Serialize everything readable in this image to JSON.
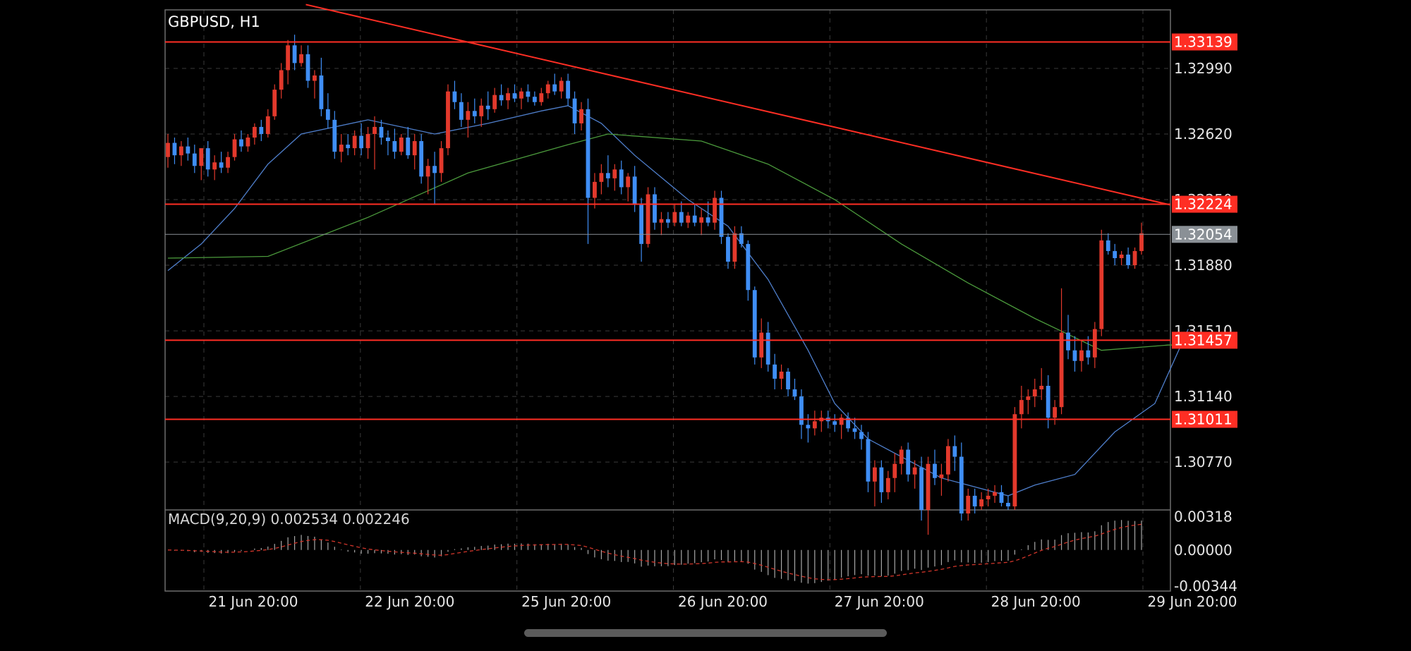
{
  "chart_data": {
    "type": "candlestick",
    "symbol_label": "GBPUSD, H1",
    "y_ticks": [
      "1.32990",
      "1.32620",
      "1.32250",
      "1.31880",
      "1.31510",
      "1.31140",
      "1.30770"
    ],
    "ylim": [
      1.305,
      1.3332
    ],
    "x_ticks": [
      "21 Jun 20:00",
      "22 Jun 20:00",
      "25 Jun 20:00",
      "26 Jun 20:00",
      "27 Jun 20:00",
      "28 Jun 20:00",
      "29 Jun 20:00"
    ],
    "grid": true,
    "horizontal_lines": [
      {
        "label": "1.33139",
        "value": 1.33139,
        "color": "#ff2e24"
      },
      {
        "label": "1.32224",
        "value": 1.32224,
        "color": "#ff2e24"
      },
      {
        "label": "1.32054",
        "value": 1.32054,
        "color": "#8a9096"
      },
      {
        "label": "1.31457",
        "value": 1.31457,
        "color": "#ff2e24"
      },
      {
        "label": "1.31011",
        "value": 1.31011,
        "color": "#ff2e24"
      }
    ],
    "trendline": {
      "from": [
        0.14,
        1.3335
      ],
      "to": [
        1.0,
        1.3222
      ],
      "color": "#ff2e24"
    },
    "candles": [
      [
        1.3249,
        1.3262,
        1.3243,
        1.3257
      ],
      [
        1.3257,
        1.326,
        1.3245,
        1.325
      ],
      [
        1.325,
        1.3258,
        1.3244,
        1.3255
      ],
      [
        1.3255,
        1.326,
        1.3247,
        1.3251
      ],
      [
        1.3251,
        1.3256,
        1.324,
        1.3244
      ],
      [
        1.3244,
        1.3252,
        1.3236,
        1.3254
      ],
      [
        1.3254,
        1.3258,
        1.3238,
        1.3242
      ],
      [
        1.3242,
        1.325,
        1.3236,
        1.3246
      ],
      [
        1.3246,
        1.3252,
        1.324,
        1.3243
      ],
      [
        1.3243,
        1.3252,
        1.324,
        1.3249
      ],
      [
        1.3249,
        1.3262,
        1.3247,
        1.3259
      ],
      [
        1.3259,
        1.3264,
        1.3252,
        1.3255
      ],
      [
        1.3255,
        1.3262,
        1.3252,
        1.326
      ],
      [
        1.326,
        1.3268,
        1.3256,
        1.3266
      ],
      [
        1.3266,
        1.327,
        1.3258,
        1.3262
      ],
      [
        1.3262,
        1.3276,
        1.326,
        1.3272
      ],
      [
        1.3272,
        1.329,
        1.327,
        1.3287
      ],
      [
        1.3287,
        1.3302,
        1.3282,
        1.3298
      ],
      [
        1.3298,
        1.3315,
        1.329,
        1.3312
      ],
      [
        1.3312,
        1.3318,
        1.3298,
        1.3302
      ],
      [
        1.3302,
        1.3312,
        1.33,
        1.3307
      ],
      [
        1.3307,
        1.3312,
        1.3288,
        1.3292
      ],
      [
        1.3292,
        1.3298,
        1.3282,
        1.3295
      ],
      [
        1.3295,
        1.3305,
        1.3272,
        1.3276
      ],
      [
        1.3276,
        1.3285,
        1.3265,
        1.327
      ],
      [
        1.327,
        1.3275,
        1.3248,
        1.3252
      ],
      [
        1.3252,
        1.3262,
        1.3246,
        1.3256
      ],
      [
        1.3256,
        1.3262,
        1.325,
        1.3254
      ],
      [
        1.3254,
        1.3264,
        1.325,
        1.3261
      ],
      [
        1.3261,
        1.3268,
        1.325,
        1.3254
      ],
      [
        1.3254,
        1.3266,
        1.3248,
        1.3262
      ],
      [
        1.3262,
        1.3272,
        1.3242,
        1.3266
      ],
      [
        1.3266,
        1.327,
        1.3256,
        1.326
      ],
      [
        1.326,
        1.3264,
        1.325,
        1.3258
      ],
      [
        1.3258,
        1.3265,
        1.3248,
        1.3252
      ],
      [
        1.3252,
        1.3262,
        1.325,
        1.326
      ],
      [
        1.326,
        1.3266,
        1.3248,
        1.325
      ],
      [
        1.325,
        1.3262,
        1.3242,
        1.3258
      ],
      [
        1.3258,
        1.3262,
        1.3234,
        1.3238
      ],
      [
        1.3238,
        1.3248,
        1.3228,
        1.3244
      ],
      [
        1.3244,
        1.3252,
        1.3222,
        1.324
      ],
      [
        1.324,
        1.3258,
        1.3235,
        1.3254
      ],
      [
        1.3254,
        1.329,
        1.325,
        1.3286
      ],
      [
        1.3286,
        1.3292,
        1.3276,
        1.328
      ],
      [
        1.328,
        1.3285,
        1.3266,
        1.327
      ],
      [
        1.327,
        1.328,
        1.326,
        1.3275
      ],
      [
        1.3275,
        1.3282,
        1.3268,
        1.3272
      ],
      [
        1.3272,
        1.3282,
        1.3266,
        1.3278
      ],
      [
        1.3278,
        1.3286,
        1.327,
        1.3276
      ],
      [
        1.3276,
        1.3288,
        1.3274,
        1.3284
      ],
      [
        1.3284,
        1.329,
        1.3278,
        1.3281
      ],
      [
        1.3281,
        1.3288,
        1.3276,
        1.3285
      ],
      [
        1.3285,
        1.329,
        1.328,
        1.3282
      ],
      [
        1.3282,
        1.3288,
        1.3276,
        1.3286
      ],
      [
        1.3286,
        1.329,
        1.328,
        1.3283
      ],
      [
        1.3283,
        1.3286,
        1.3278,
        1.328
      ],
      [
        1.328,
        1.3288,
        1.3278,
        1.3285
      ],
      [
        1.3285,
        1.3292,
        1.3282,
        1.329
      ],
      [
        1.329,
        1.3296,
        1.3284,
        1.3286
      ],
      [
        1.3286,
        1.3294,
        1.3282,
        1.3292
      ],
      [
        1.3292,
        1.3296,
        1.3278,
        1.3282
      ],
      [
        1.3282,
        1.3286,
        1.3262,
        1.3268
      ],
      [
        1.3268,
        1.328,
        1.3264,
        1.3276
      ],
      [
        1.3276,
        1.3282,
        1.32,
        1.3226
      ],
      [
        1.3226,
        1.324,
        1.322,
        1.3235
      ],
      [
        1.3235,
        1.3245,
        1.3228,
        1.324
      ],
      [
        1.324,
        1.325,
        1.3232,
        1.3237
      ],
      [
        1.3237,
        1.3245,
        1.323,
        1.3242
      ],
      [
        1.3242,
        1.3247,
        1.3228,
        1.3232
      ],
      [
        1.3232,
        1.324,
        1.3224,
        1.3238
      ],
      [
        1.3238,
        1.3244,
        1.3218,
        1.3222
      ],
      [
        1.3222,
        1.3226,
        1.319,
        1.32
      ],
      [
        1.32,
        1.3232,
        1.3198,
        1.3228
      ],
      [
        1.3228,
        1.3232,
        1.3208,
        1.3212
      ],
      [
        1.3212,
        1.3218,
        1.3205,
        1.3214
      ],
      [
        1.3214,
        1.3218,
        1.3209,
        1.3212
      ],
      [
        1.3212,
        1.3222,
        1.321,
        1.3218
      ],
      [
        1.3218,
        1.3224,
        1.321,
        1.3212
      ],
      [
        1.3212,
        1.3218,
        1.3209,
        1.3216
      ],
      [
        1.3216,
        1.3222,
        1.321,
        1.3212
      ],
      [
        1.3212,
        1.322,
        1.3205,
        1.3215
      ],
      [
        1.3215,
        1.3224,
        1.321,
        1.3212
      ],
      [
        1.3212,
        1.323,
        1.3208,
        1.3226
      ],
      [
        1.3226,
        1.323,
        1.32,
        1.3204
      ],
      [
        1.3204,
        1.3206,
        1.3186,
        1.319
      ],
      [
        1.319,
        1.321,
        1.3186,
        1.3206
      ],
      [
        1.3206,
        1.321,
        1.3198,
        1.32
      ],
      [
        1.32,
        1.3202,
        1.3168,
        1.3174
      ],
      [
        1.3174,
        1.3176,
        1.3132,
        1.3136
      ],
      [
        1.3136,
        1.3158,
        1.313,
        1.315
      ],
      [
        1.315,
        1.3156,
        1.3128,
        1.3132
      ],
      [
        1.3132,
        1.3138,
        1.3118,
        1.3124
      ],
      [
        1.3124,
        1.3132,
        1.3118,
        1.3128
      ],
      [
        1.3128,
        1.313,
        1.3114,
        1.3118
      ],
      [
        1.3118,
        1.3124,
        1.3112,
        1.3114
      ],
      [
        1.3114,
        1.3118,
        1.309,
        1.3098
      ],
      [
        1.3098,
        1.3104,
        1.3088,
        1.3096
      ],
      [
        1.3096,
        1.3106,
        1.3092,
        1.31
      ],
      [
        1.31,
        1.3106,
        1.3094,
        1.3102
      ],
      [
        1.3102,
        1.3106,
        1.3096,
        1.31
      ],
      [
        1.31,
        1.3104,
        1.3094,
        1.3098
      ],
      [
        1.3098,
        1.3104,
        1.309,
        1.3102
      ],
      [
        1.3102,
        1.3105,
        1.3094,
        1.3096
      ],
      [
        1.3096,
        1.3102,
        1.309,
        1.3094
      ],
      [
        1.3094,
        1.3098,
        1.3084,
        1.309
      ],
      [
        1.309,
        1.3094,
        1.306,
        1.3066
      ],
      [
        1.3066,
        1.3078,
        1.3052,
        1.3074
      ],
      [
        1.3074,
        1.3078,
        1.3054,
        1.306
      ],
      [
        1.306,
        1.3072,
        1.3056,
        1.3068
      ],
      [
        1.3068,
        1.3082,
        1.306,
        1.3076
      ],
      [
        1.3076,
        1.3086,
        1.307,
        1.3084
      ],
      [
        1.3084,
        1.3088,
        1.3066,
        1.307
      ],
      [
        1.307,
        1.3078,
        1.3062,
        1.3074
      ],
      [
        1.3074,
        1.308,
        1.3044,
        1.305
      ],
      [
        1.305,
        1.308,
        1.3036,
        1.3076
      ],
      [
        1.3076,
        1.3084,
        1.3064,
        1.3068
      ],
      [
        1.3068,
        1.3076,
        1.3058,
        1.307
      ],
      [
        1.307,
        1.309,
        1.3066,
        1.3086
      ],
      [
        1.3086,
        1.3092,
        1.3072,
        1.308
      ],
      [
        1.308,
        1.3088,
        1.3044,
        1.3048
      ],
      [
        1.3048,
        1.3062,
        1.3044,
        1.3058
      ],
      [
        1.3058,
        1.3062,
        1.3048,
        1.3052
      ],
      [
        1.3052,
        1.306,
        1.305,
        1.3056
      ],
      [
        1.3056,
        1.3062,
        1.3052,
        1.3058
      ],
      [
        1.3058,
        1.3064,
        1.3054,
        1.306
      ],
      [
        1.306,
        1.3064,
        1.3052,
        1.3054
      ],
      [
        1.3054,
        1.3058,
        1.305,
        1.3052
      ],
      [
        1.3052,
        1.3108,
        1.305,
        1.3104
      ],
      [
        1.3104,
        1.312,
        1.3096,
        1.3112
      ],
      [
        1.3112,
        1.3118,
        1.3104,
        1.3114
      ],
      [
        1.3114,
        1.3124,
        1.3108,
        1.3118
      ],
      [
        1.3118,
        1.313,
        1.3112,
        1.312
      ],
      [
        1.312,
        1.3126,
        1.3096,
        1.3102
      ],
      [
        1.3102,
        1.3112,
        1.3098,
        1.3108
      ],
      [
        1.3108,
        1.3175,
        1.3104,
        1.315
      ],
      [
        1.315,
        1.316,
        1.3135,
        1.314
      ],
      [
        1.314,
        1.3148,
        1.3128,
        1.3134
      ],
      [
        1.3134,
        1.3146,
        1.3128,
        1.314
      ],
      [
        1.314,
        1.3148,
        1.3132,
        1.3136
      ],
      [
        1.3136,
        1.3156,
        1.313,
        1.3152
      ],
      [
        1.3152,
        1.3208,
        1.3148,
        1.3202
      ],
      [
        1.3202,
        1.3206,
        1.3194,
        1.3196
      ],
      [
        1.3196,
        1.32,
        1.3188,
        1.3192
      ],
      [
        1.3192,
        1.3196,
        1.3188,
        1.3194
      ],
      [
        1.3194,
        1.3198,
        1.3186,
        1.3188
      ],
      [
        1.3188,
        1.3198,
        1.3186,
        1.3196
      ],
      [
        1.3196,
        1.3212,
        1.3194,
        1.3206
      ]
    ],
    "moving_averages": [
      {
        "color": "#4f7fcc",
        "values": [
          [
            0,
            1.3185
          ],
          [
            5,
            1.32
          ],
          [
            10,
            1.322
          ],
          [
            15,
            1.3245
          ],
          [
            20,
            1.3262
          ],
          [
            30,
            1.327
          ],
          [
            40,
            1.3262
          ],
          [
            48,
            1.3268
          ],
          [
            56,
            1.3275
          ],
          [
            60,
            1.3278
          ],
          [
            65,
            1.3268
          ],
          [
            70,
            1.325
          ],
          [
            78,
            1.3225
          ],
          [
            84,
            1.321
          ],
          [
            90,
            1.318
          ],
          [
            96,
            1.314
          ],
          [
            100,
            1.311
          ],
          [
            105,
            1.309
          ],
          [
            110,
            1.308
          ],
          [
            116,
            1.3068
          ],
          [
            120,
            1.3064
          ],
          [
            126,
            1.3058
          ],
          [
            130,
            1.3064
          ],
          [
            136,
            1.307
          ],
          [
            142,
            1.3094
          ],
          [
            148,
            1.311
          ],
          [
            153,
            1.3152
          ]
        ]
      },
      {
        "color": "#4b9a3c",
        "values": [
          [
            0,
            1.3192
          ],
          [
            15,
            1.3193
          ],
          [
            30,
            1.3215
          ],
          [
            45,
            1.324
          ],
          [
            60,
            1.3256
          ],
          [
            66,
            1.3262
          ],
          [
            80,
            1.3258
          ],
          [
            90,
            1.3245
          ],
          [
            100,
            1.3225
          ],
          [
            110,
            1.32
          ],
          [
            120,
            1.3178
          ],
          [
            130,
            1.3158
          ],
          [
            140,
            1.314
          ],
          [
            150,
            1.3143
          ],
          [
            152,
            1.3143
          ]
        ]
      }
    ],
    "macd": {
      "label": "MACD(9,20,9) 0.002534 0.002246",
      "y_ticks": [
        "0.00318",
        "0.00000",
        "-0.00344"
      ],
      "ylim": [
        -0.0039,
        0.0038
      ]
    }
  }
}
